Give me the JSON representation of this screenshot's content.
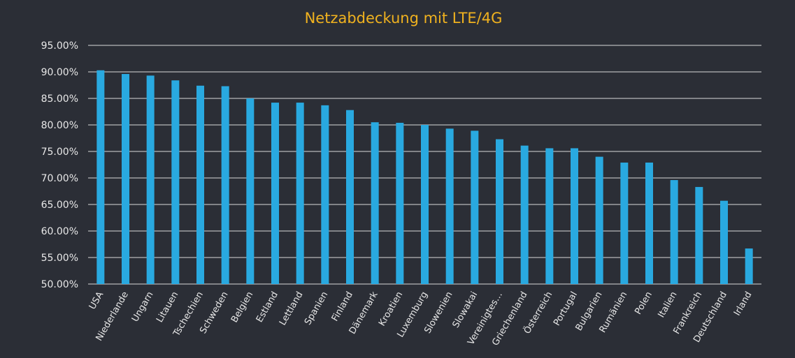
{
  "chart_data": {
    "type": "bar",
    "title": "Netzabdeckung mit LTE/4G",
    "xlabel": "",
    "ylabel": "",
    "ylim": [
      50,
      95
    ],
    "yticks": [
      "50.00%",
      "55.00%",
      "60.00%",
      "65.00%",
      "70.00%",
      "75.00%",
      "80.00%",
      "85.00%",
      "90.00%",
      "95.00%"
    ],
    "grid": true,
    "legend": "none",
    "bar_color": "#29a9e0",
    "title_color": "#f0b21f",
    "background": "#2b2e36",
    "categories": [
      "USA",
      "Niederlande",
      "Ungarn",
      "Litauen",
      "Tschechien",
      "Schweden",
      "Belgien",
      "Estland",
      "Lettland",
      "Spanien",
      "Finland",
      "Dänemark",
      "Kroatien",
      "Luxemburg",
      "Slowenien",
      "Slowakai",
      "Vereinigtes…",
      "Griechenland",
      "Österreich",
      "Portugal",
      "Bulgarien",
      "Rumänien",
      "Polen",
      "Italien",
      "Frankreich",
      "Deutschland",
      "Irland"
    ],
    "values": [
      90.3,
      89.6,
      89.3,
      88.4,
      87.4,
      87.3,
      85.0,
      84.2,
      84.2,
      83.7,
      82.8,
      80.5,
      80.4,
      80.0,
      79.3,
      78.9,
      77.3,
      76.1,
      75.6,
      75.6,
      74.0,
      72.9,
      72.9,
      69.6,
      68.3,
      65.7,
      56.7
    ]
  }
}
